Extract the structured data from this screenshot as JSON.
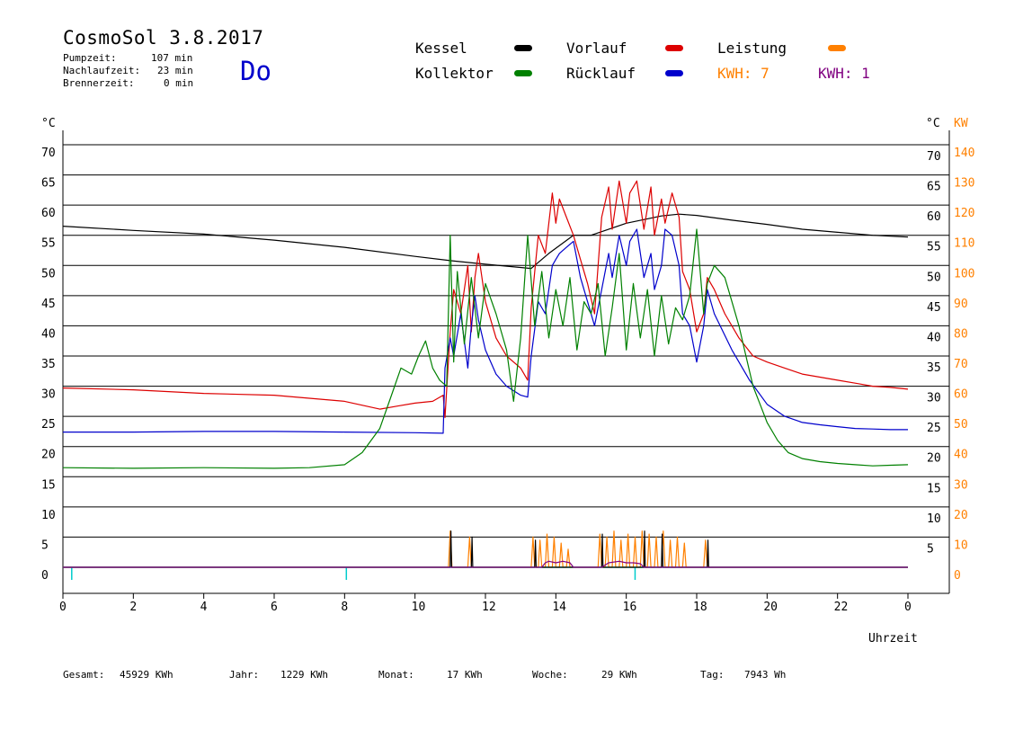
{
  "header": {
    "title": "CosmoSol 3.8.2017",
    "day": "Do",
    "stats": [
      {
        "label": "Pumpzeit:",
        "value": "107 min"
      },
      {
        "label": "Nachlaufzeit:",
        "value": "23 min"
      },
      {
        "label": "Brennerzeit:",
        "value": "0 min"
      }
    ]
  },
  "legend": {
    "kessel": "Kessel",
    "kollektor": "Kollektor",
    "vorlauf": "Vorlauf",
    "ruecklauf": "Rücklauf",
    "leistung": "Leistung",
    "kwh_orange": "KWH: 7",
    "kwh_purple": "KWH: 1"
  },
  "footer": {
    "gesamt_label": "Gesamt:",
    "gesamt_value": "45929 KWh",
    "jahr_label": "Jahr:",
    "jahr_value": "1229 KWh",
    "monat_label": "Monat:",
    "monat_value": "17 KWh",
    "woche_label": "Woche:",
    "woche_value": "29 KWh",
    "tag_label": "Tag:",
    "tag_value": "7943 Wh"
  },
  "colors": {
    "kessel": "#000000",
    "kollektor": "#008000",
    "vorlauf": "#dd0000",
    "ruecklauf": "#0000cc",
    "leistung": "#ff8000",
    "purple": "#800080",
    "baseline": "#00cccc"
  },
  "chart_data": {
    "type": "line",
    "xlabel": "Uhrzeit",
    "ylabel_left": "°C",
    "ylabel_right_temp": "°C",
    "ylabel_right_power": "KW",
    "xlim": [
      0,
      24
    ],
    "ylim": [
      0,
      70
    ],
    "x_ticks": [
      "0",
      "2",
      "4",
      "6",
      "8",
      "10",
      "12",
      "14",
      "16",
      "18",
      "20",
      "22",
      "0"
    ],
    "y_ticks_left": [
      "70",
      "65",
      "60",
      "55",
      "50",
      "45",
      "40",
      "35",
      "30",
      "25",
      "20",
      "15",
      "10",
      "5",
      "0"
    ],
    "y_ticks_right": [
      "70",
      "65",
      "60",
      "55",
      "50",
      "45",
      "40",
      "35",
      "30",
      "25",
      "20",
      "15",
      "10",
      "5"
    ],
    "y_ticks_power": [
      "140",
      "130",
      "120",
      "110",
      "100",
      "90",
      "80",
      "70",
      "60",
      "50",
      "40",
      "30",
      "20",
      "10",
      "0"
    ],
    "grid": true,
    "series": [
      {
        "name": "Kessel",
        "color": "#000000",
        "x": [
          0,
          2,
          4,
          6,
          8,
          10,
          11,
          12,
          13.3,
          13.8,
          14.5,
          15,
          16,
          17,
          17.5,
          18,
          19,
          20,
          21,
          22,
          23,
          24
        ],
        "y": [
          56.5,
          55.8,
          55.2,
          54.2,
          53,
          51.5,
          50.8,
          50.2,
          49.5,
          52,
          55,
          55,
          57,
          58.2,
          58.5,
          58.3,
          57.5,
          56.8,
          56,
          55.5,
          55,
          54.7
        ]
      },
      {
        "name": "Vorlauf",
        "color": "#dd0000",
        "x": [
          0,
          2,
          4,
          6,
          8,
          9,
          9.5,
          10,
          10.5,
          10.8,
          10.85,
          11.0,
          11.1,
          11.3,
          11.5,
          11.6,
          11.7,
          11.8,
          12,
          12.3,
          12.6,
          13,
          13.2,
          13.3,
          13.5,
          13.7,
          13.9,
          14.0,
          14.1,
          14.3,
          14.5,
          14.7,
          14.9,
          15.1,
          15.3,
          15.5,
          15.6,
          15.8,
          16.0,
          16.1,
          16.3,
          16.5,
          16.7,
          16.8,
          17.0,
          17.1,
          17.3,
          17.5,
          17.6,
          17.8,
          18.0,
          18.2,
          18.3,
          18.5,
          18.8,
          19.2,
          19.6,
          20,
          20.5,
          21,
          21.5,
          22,
          22.5,
          23,
          23.5,
          24
        ],
        "y": [
          29.7,
          29.4,
          28.8,
          28.5,
          27.5,
          26.2,
          26.7,
          27.2,
          27.5,
          28.5,
          24.8,
          39,
          46,
          42,
          50,
          39,
          48,
          52,
          44,
          38,
          35,
          33,
          31,
          43,
          55,
          52,
          62,
          57,
          61,
          58,
          55,
          51,
          47,
          42,
          58,
          63,
          56,
          64,
          57,
          62,
          64,
          56,
          63,
          55,
          61,
          57,
          62,
          58,
          49,
          46,
          39,
          42,
          48,
          46,
          42,
          38,
          35,
          34,
          33,
          32,
          31.5,
          31,
          30.5,
          30,
          29.8,
          29.5
        ]
      },
      {
        "name": "Rücklauf",
        "color": "#0000cc",
        "x": [
          0,
          2,
          4,
          6,
          8,
          10,
          10.8,
          10.85,
          11.0,
          11.1,
          11.3,
          11.5,
          11.6,
          11.7,
          11.8,
          12,
          12.3,
          12.6,
          13,
          13.2,
          13.3,
          13.5,
          13.7,
          13.9,
          14.0,
          14.1,
          14.3,
          14.5,
          14.7,
          14.9,
          15.1,
          15.3,
          15.5,
          15.6,
          15.8,
          16.0,
          16.1,
          16.3,
          16.5,
          16.7,
          16.8,
          17.0,
          17.1,
          17.3,
          17.5,
          17.6,
          17.8,
          18.0,
          18.2,
          18.3,
          18.5,
          19,
          19.5,
          20,
          20.5,
          21,
          21.5,
          22,
          22.5,
          23,
          23.5,
          24
        ],
        "y": [
          22.4,
          22.4,
          22.5,
          22.5,
          22.4,
          22.3,
          22.2,
          33,
          38,
          35,
          42,
          33,
          40,
          45,
          41,
          36,
          32,
          30,
          28.5,
          28.2,
          35,
          44,
          42,
          50,
          51,
          52,
          53,
          54,
          48,
          44,
          40,
          46,
          52,
          48,
          55,
          50,
          54,
          56,
          48,
          52,
          46,
          50,
          56,
          55,
          50,
          42,
          40,
          34,
          40,
          46,
          42,
          36,
          31,
          27,
          25,
          24,
          23.6,
          23.3,
          23,
          22.9,
          22.8,
          22.8
        ]
      },
      {
        "name": "Kollektor",
        "color": "#008000",
        "x": [
          0,
          2,
          4,
          6,
          7,
          8,
          8.5,
          9,
          9.3,
          9.6,
          9.9,
          10.1,
          10.3,
          10.5,
          10.7,
          10.9,
          11.0,
          11.1,
          11.2,
          11.4,
          11.6,
          11.8,
          12,
          12.3,
          12.6,
          12.8,
          13.0,
          13.2,
          13.4,
          13.6,
          13.8,
          14.0,
          14.2,
          14.4,
          14.6,
          14.8,
          15.0,
          15.2,
          15.4,
          15.6,
          15.8,
          16.0,
          16.2,
          16.4,
          16.6,
          16.8,
          17.0,
          17.2,
          17.4,
          17.6,
          17.8,
          18.0,
          18.2,
          18.3,
          18.5,
          18.8,
          19.0,
          19.2,
          19.4,
          19.6,
          19.8,
          20,
          20.3,
          20.6,
          21,
          21.5,
          22,
          22.5,
          23,
          23.5,
          24
        ],
        "y": [
          16.5,
          16.4,
          16.5,
          16.4,
          16.5,
          17,
          19,
          23,
          28,
          33,
          32,
          35,
          37.5,
          33,
          31,
          30,
          55,
          34,
          49,
          37,
          48,
          38,
          47,
          42,
          36,
          27.5,
          38,
          55,
          40,
          49,
          38,
          46,
          40,
          48,
          36,
          44,
          42,
          47,
          35,
          43,
          52,
          36,
          47,
          38,
          46,
          35,
          45,
          37,
          43,
          41,
          45,
          56,
          42,
          47,
          50,
          48,
          44,
          40,
          35,
          30,
          27,
          24,
          21,
          19,
          18,
          17.5,
          17.2,
          17,
          16.8,
          16.9,
          17
        ]
      },
      {
        "name": "Leistung",
        "color": "#ff8000",
        "axis": "power",
        "x": [
          0,
          10.8,
          10.95,
          11.0,
          11.05,
          11.5,
          11.55,
          11.6,
          11.65,
          13.3,
          13.35,
          13.4,
          13.5,
          13.55,
          13.6,
          13.7,
          13.75,
          13.8,
          13.9,
          13.95,
          14.0,
          14.1,
          14.15,
          14.2,
          14.3,
          14.35,
          14.4,
          15.2,
          15.25,
          15.3,
          15.4,
          15.45,
          15.5,
          15.6,
          15.65,
          15.7,
          15.8,
          15.85,
          15.9,
          16.0,
          16.05,
          16.1,
          16.2,
          16.25,
          16.3,
          16.4,
          16.45,
          16.5,
          16.6,
          16.65,
          16.7,
          16.8,
          16.85,
          16.9,
          17.0,
          17.05,
          17.1,
          17.2,
          17.25,
          17.3,
          17.4,
          17.45,
          17.5,
          17.6,
          17.65,
          17.7,
          18.2,
          18.25,
          18.3,
          18.35,
          24
        ],
        "y": [
          0,
          0,
          0,
          12,
          0,
          0,
          10,
          0,
          0,
          0,
          10,
          0,
          0,
          9,
          0,
          0,
          11,
          0,
          0,
          10,
          0,
          0,
          8,
          0,
          0,
          6,
          0,
          0,
          11,
          0,
          0,
          10,
          0,
          0,
          12,
          0,
          0,
          9,
          0,
          0,
          11,
          0,
          0,
          10,
          0,
          0,
          12,
          0,
          0,
          11,
          0,
          0,
          10,
          0,
          0,
          12,
          0,
          0,
          9,
          0,
          0,
          10,
          0,
          0,
          8,
          0,
          0,
          9,
          0,
          0,
          0
        ]
      },
      {
        "name": "Kessel-Leistung",
        "color": "#000000",
        "axis": "power",
        "x": [
          0,
          11.0,
          11.02,
          11.04,
          11.6,
          11.62,
          11.64,
          13.4,
          13.42,
          13.44,
          15.3,
          15.32,
          15.34,
          16.5,
          16.52,
          16.54,
          17.0,
          17.02,
          17.04,
          18.3,
          18.32,
          18.34,
          24
        ],
        "y": [
          0,
          0,
          12,
          0,
          0,
          10,
          0,
          0,
          9,
          0,
          0,
          11,
          0,
          0,
          12,
          0,
          0,
          11,
          0,
          0,
          9,
          0,
          0
        ]
      },
      {
        "name": "Purple",
        "color": "#800080",
        "axis": "power",
        "x": [
          0,
          13.6,
          13.7,
          13.8,
          14.0,
          14.2,
          14.4,
          14.5,
          15.3,
          15.5,
          15.8,
          16.0,
          16.2,
          16.4,
          16.5,
          24
        ],
        "y": [
          0,
          0,
          1.5,
          2,
          1.5,
          2,
          1.5,
          0,
          0,
          1.5,
          2,
          1.5,
          1.5,
          1.2,
          0,
          0
        ]
      }
    ],
    "baseline_ticks_x": [
      0.25,
      8.05,
      16.25
    ]
  }
}
